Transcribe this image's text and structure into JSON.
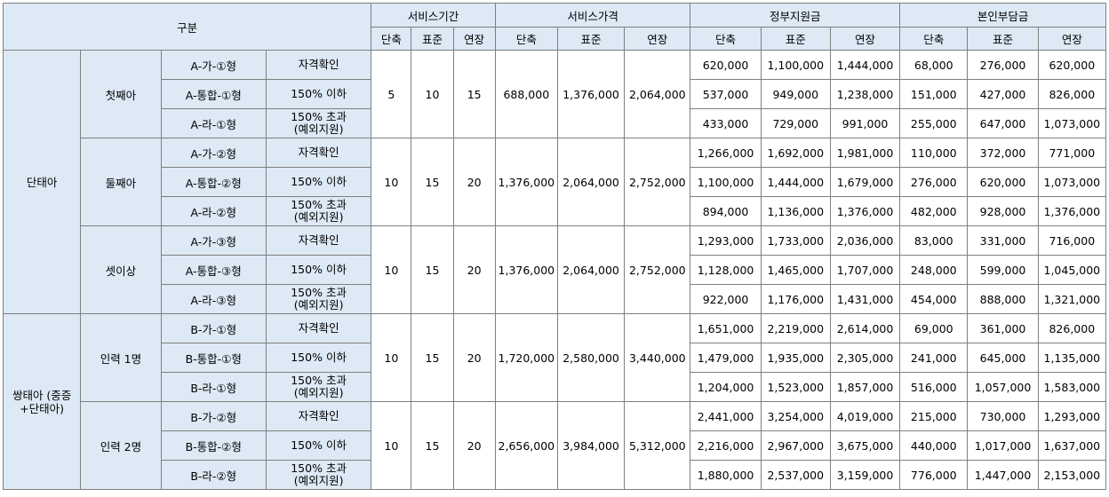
{
  "header": {
    "category": "구분",
    "service_period": "서비스기간",
    "service_price": "서비스가격",
    "gov_support": "정부지원금",
    "self_pay": "본인부담금",
    "sub": [
      "단축",
      "표준",
      "연장"
    ]
  },
  "groups": [
    {
      "label": "단태아",
      "subgroups": [
        {
          "label": "첫째아",
          "period": [
            "5",
            "10",
            "15"
          ],
          "price": [
            "688,000",
            "1,376,000",
            "2,064,000"
          ],
          "rows": [
            {
              "type": "A-가-①형",
              "criteria": [
                "자격확인"
              ],
              "gov": [
                "620,000",
                "1,100,000",
                "1,444,000"
              ],
              "self": [
                "68,000",
                "276,000",
                "620,000"
              ]
            },
            {
              "type": "A-통합-①형",
              "criteria": [
                "150% 이하"
              ],
              "gov": [
                "537,000",
                "949,000",
                "1,238,000"
              ],
              "self": [
                "151,000",
                "427,000",
                "826,000"
              ]
            },
            {
              "type": "A-라-①형",
              "criteria": [
                "150% 초과",
                "(예외지원)"
              ],
              "gov": [
                "433,000",
                "729,000",
                "991,000"
              ],
              "self": [
                "255,000",
                "647,000",
                "1,073,000"
              ]
            }
          ]
        },
        {
          "label": "둘째아",
          "period": [
            "10",
            "15",
            "20"
          ],
          "price": [
            "1,376,000",
            "2,064,000",
            "2,752,000"
          ],
          "rows": [
            {
              "type": "A-가-②형",
              "criteria": [
                "자격확인"
              ],
              "gov": [
                "1,266,000",
                "1,692,000",
                "1,981,000"
              ],
              "self": [
                "110,000",
                "372,000",
                "771,000"
              ]
            },
            {
              "type": "A-통합-②형",
              "criteria": [
                "150% 이하"
              ],
              "gov": [
                "1,100,000",
                "1,444,000",
                "1,679,000"
              ],
              "self": [
                "276,000",
                "620,000",
                "1,073,000"
              ]
            },
            {
              "type": "A-라-②형",
              "criteria": [
                "150% 초과",
                "(예외지원)"
              ],
              "gov": [
                "894,000",
                "1,136,000",
                "1,376,000"
              ],
              "self": [
                "482,000",
                "928,000",
                "1,376,000"
              ]
            }
          ]
        },
        {
          "label": "셋이상",
          "period": [
            "10",
            "15",
            "20"
          ],
          "price": [
            "1,376,000",
            "2,064,000",
            "2,752,000"
          ],
          "rows": [
            {
              "type": "A-가-③형",
              "criteria": [
                "자격확인"
              ],
              "gov": [
                "1,293,000",
                "1,733,000",
                "2,036,000"
              ],
              "self": [
                "83,000",
                "331,000",
                "716,000"
              ]
            },
            {
              "type": "A-통합-③형",
              "criteria": [
                "150% 이하"
              ],
              "gov": [
                "1,128,000",
                "1,465,000",
                "1,707,000"
              ],
              "self": [
                "248,000",
                "599,000",
                "1,045,000"
              ]
            },
            {
              "type": "A-라-③형",
              "criteria": [
                "150% 초과",
                "(예외지원)"
              ],
              "gov": [
                "922,000",
                "1,176,000",
                "1,431,000"
              ],
              "self": [
                "454,000",
                "888,000",
                "1,321,000"
              ]
            }
          ]
        }
      ]
    },
    {
      "label": "쌍태아 (중증+단태아)",
      "subgroups": [
        {
          "label": "인력 1명",
          "period": [
            "10",
            "15",
            "20"
          ],
          "price": [
            "1,720,000",
            "2,580,000",
            "3,440,000"
          ],
          "rows": [
            {
              "type": "B-가-①형",
              "criteria": [
                "자격확인"
              ],
              "gov": [
                "1,651,000",
                "2,219,000",
                "2,614,000"
              ],
              "self": [
                "69,000",
                "361,000",
                "826,000"
              ]
            },
            {
              "type": "B-통합-①형",
              "criteria": [
                "150% 이하"
              ],
              "gov": [
                "1,479,000",
                "1,935,000",
                "2,305,000"
              ],
              "self": [
                "241,000",
                "645,000",
                "1,135,000"
              ]
            },
            {
              "type": "B-라-①형",
              "criteria": [
                "150% 초과",
                "(예외지원)"
              ],
              "gov": [
                "1,204,000",
                "1,523,000",
                "1,857,000"
              ],
              "self": [
                "516,000",
                "1,057,000",
                "1,583,000"
              ]
            }
          ]
        },
        {
          "label": "인력 2명",
          "period": [
            "10",
            "15",
            "20"
          ],
          "price": [
            "2,656,000",
            "3,984,000",
            "5,312,000"
          ],
          "rows": [
            {
              "type": "B-가-②형",
              "criteria": [
                "자격확인"
              ],
              "gov": [
                "2,441,000",
                "3,254,000",
                "4,019,000"
              ],
              "self": [
                "215,000",
                "730,000",
                "1,293,000"
              ]
            },
            {
              "type": "B-통합-②형",
              "criteria": [
                "150% 이하"
              ],
              "gov": [
                "2,216,000",
                "2,967,000",
                "3,675,000"
              ],
              "self": [
                "440,000",
                "1,017,000",
                "1,637,000"
              ]
            },
            {
              "type": "B-라-②형",
              "criteria": [
                "150% 초과",
                "(예외지원)"
              ],
              "gov": [
                "1,880,000",
                "2,537,000",
                "3,159,000"
              ],
              "self": [
                "776,000",
                "1,447,000",
                "2,153,000"
              ]
            }
          ]
        }
      ]
    }
  ]
}
